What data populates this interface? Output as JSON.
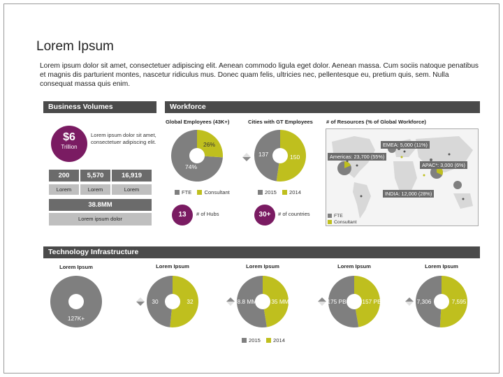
{
  "title": "Lorem Ipsum",
  "intro": "Lorem ipsum dolor sit amet, consectetuer adipiscing elit. Aenean commodo ligula eget dolor. Aenean massa. Cum sociis natoque penatibus et magnis dis parturient montes, nascetur ridiculus mus. Donec quam felis, ultricies nec, pellentesque eu, pretium quis, sem. Nulla consequat massa quis enim.",
  "colors": {
    "grey": "#7f7f7f",
    "lime": "#bfbf1e",
    "purple": "#7a1b62",
    "band": "#4a4a4a"
  },
  "business": {
    "header": "Business Volumes",
    "badge_value": "$6",
    "badge_unit": "Trillion",
    "badge_text": "Lorem ipsum dolor sit amet, consectetuer adipiscing elit.",
    "cells": [
      {
        "value": "200",
        "label": "Lorem"
      },
      {
        "value": "5,570",
        "label": "Lorem"
      },
      {
        "value": "16,919",
        "label": "Lorem"
      }
    ],
    "total_value": "38.8MM",
    "total_label": "Lorem ipsum dolor"
  },
  "workforce": {
    "header": "Workforce",
    "employees": {
      "title": "Global Employees (43K+)",
      "slices": [
        {
          "label": "74%",
          "value": 74
        },
        {
          "label": "26%",
          "value": 26
        }
      ],
      "legend": [
        "FTE",
        "Consultant"
      ],
      "hubs_value": "13",
      "hubs_label": "# of Hubs"
    },
    "cities": {
      "title": "Cities with GT Employees",
      "slices": [
        {
          "label": "137",
          "value": 137
        },
        {
          "label": "150",
          "value": 150
        }
      ],
      "legend": [
        "2015",
        "2014"
      ],
      "countries_value": "30+",
      "countries_label": "# of countries"
    },
    "resources": {
      "title": "# of Resources (% of Global Workforce)",
      "labels": {
        "emea": "EMEA: 5,000 (11%)",
        "americas": "Americas: 23,700 (55%)",
        "apac": "APAC*: 3,000 (6%)",
        "india": "INDIA: 12,000 (28%)"
      },
      "legend": [
        "FTE",
        "Consultant"
      ]
    }
  },
  "tech": {
    "header": "Technology Infrastructure",
    "legend": [
      "2015",
      "2014"
    ],
    "donuts": [
      {
        "title": "Lorem Ipsum",
        "a_label": "127K+",
        "a": 100,
        "b_label": "",
        "b": 0
      },
      {
        "title": "Lorem Ipsum",
        "a_label": "30",
        "a": 30,
        "b_label": "32",
        "b": 32
      },
      {
        "title": "Lorem Ipsum",
        "a_label": "38.8 MM",
        "a": 38.8,
        "b_label": "35 MM",
        "b": 35
      },
      {
        "title": "Lorem Ipsum",
        "a_label": "175 PB",
        "a": 175,
        "b_label": "157 PB",
        "b": 157
      },
      {
        "title": "Lorem Ipsum",
        "a_label": "7,306",
        "a": 7306,
        "b_label": "7,595",
        "b": 7595
      }
    ]
  }
}
